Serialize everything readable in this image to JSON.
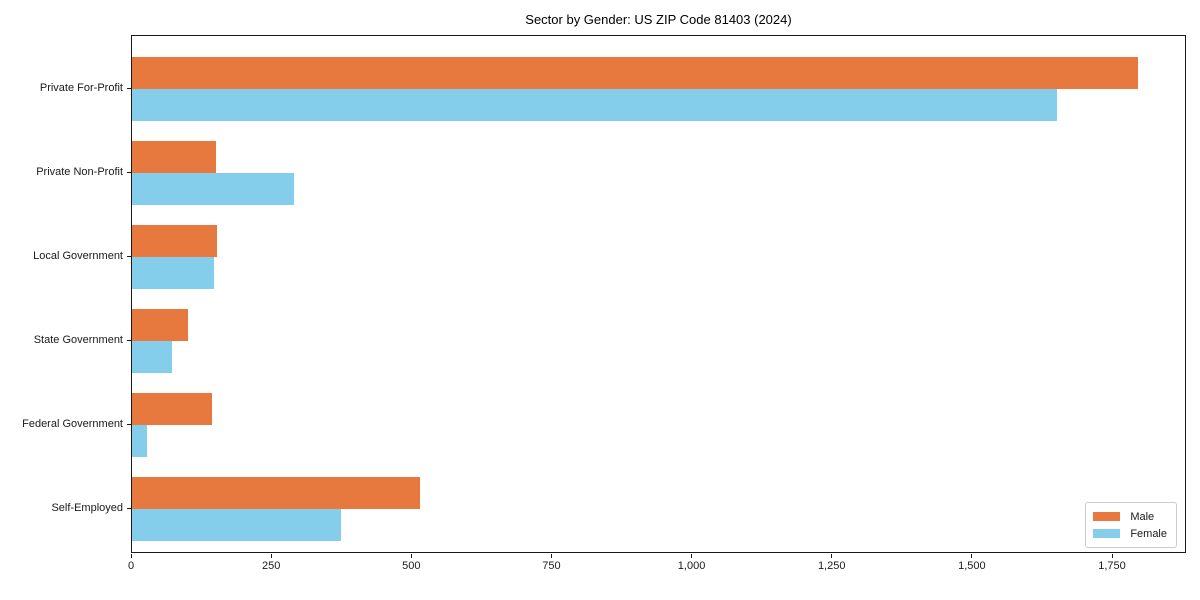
{
  "title": "Sector by Gender: US ZIP Code 81403 (2024)",
  "chart_data": {
    "type": "bar",
    "orientation": "horizontal",
    "title": "Sector by Gender: US ZIP Code 81403 (2024)",
    "categories": [
      "Private For-Profit",
      "Private Non-Profit",
      "Local Government",
      "State Government",
      "Federal Government",
      "Self-Employed"
    ],
    "series": [
      {
        "name": "Male",
        "color": "#e8793e",
        "values": [
          1795,
          150,
          152,
          100,
          143,
          513
        ]
      },
      {
        "name": "Female",
        "color": "#85ceeb",
        "values": [
          1650,
          289,
          147,
          71,
          26,
          372
        ]
      }
    ],
    "xlim": [
      0,
      1882
    ],
    "xticks": [
      0,
      250,
      500,
      750,
      1000,
      1250,
      1500,
      1750
    ],
    "xtick_labels": [
      "0",
      "250",
      "500",
      "750",
      "1,000",
      "1,250",
      "1,500",
      "1,750"
    ],
    "xlabel": "",
    "ylabel": "",
    "grid": false,
    "legend_position": "lower right"
  },
  "legend": {
    "items": [
      {
        "label": "Male",
        "color": "#e8793e"
      },
      {
        "label": "Female",
        "color": "#85ceeb"
      }
    ]
  }
}
